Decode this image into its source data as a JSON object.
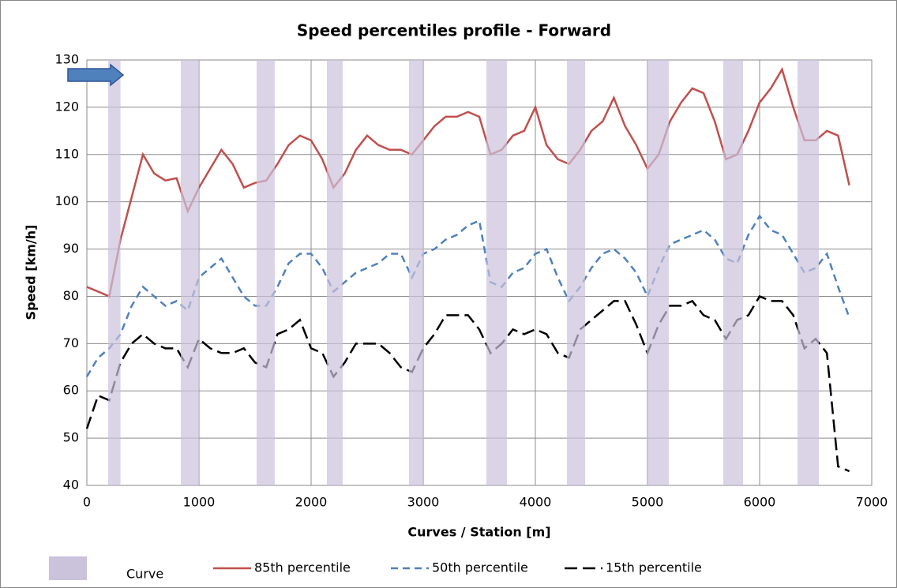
{
  "chart_data": {
    "type": "line",
    "title": "Speed percentiles profile - Forward",
    "x_label": "Curves / Station [m]",
    "y_label": "Speed [km/h]",
    "xlim": [
      0,
      7000
    ],
    "xticks": [
      0,
      1000,
      2000,
      3000,
      4000,
      5000,
      6000,
      7000
    ],
    "ylim": [
      40,
      130
    ],
    "yticks": [
      40,
      50,
      60,
      70,
      80,
      90,
      100,
      110,
      120,
      130
    ],
    "grid": true,
    "curves": {
      "name": "Curve",
      "color": "#cbc2dc",
      "ranges": [
        [
          190,
          300
        ],
        [
          838,
          1000
        ],
        [
          1514,
          1676
        ],
        [
          2141,
          2282
        ],
        [
          2873,
          3007
        ],
        [
          3563,
          3746
        ],
        [
          4282,
          4444
        ],
        [
          4993,
          5190
        ],
        [
          5676,
          5852
        ],
        [
          6338,
          6528
        ]
      ]
    },
    "x": [
      0,
      100,
      200,
      300,
      400,
      500,
      600,
      700,
      800,
      900,
      1000,
      1100,
      1200,
      1300,
      1400,
      1500,
      1600,
      1700,
      1800,
      1900,
      2000,
      2100,
      2200,
      2300,
      2400,
      2500,
      2600,
      2700,
      2800,
      2900,
      3000,
      3100,
      3200,
      3300,
      3400,
      3500,
      3600,
      3700,
      3800,
      3900,
      4000,
      4100,
      4200,
      4300,
      4400,
      4500,
      4600,
      4700,
      4800,
      4900,
      5000,
      5100,
      5200,
      5300,
      5400,
      5500,
      5600,
      5700,
      5800,
      5900,
      6000,
      6100,
      6200,
      6300,
      6400,
      6500,
      6600,
      6700,
      6800
    ],
    "series": [
      {
        "name": "85th percentile",
        "color": "#c0504d",
        "dash": "solid",
        "values": [
          82,
          81,
          80,
          92,
          101,
          110,
          106,
          104.5,
          105,
          98,
          103,
          107,
          111,
          108,
          103,
          104,
          104.5,
          108,
          112,
          114,
          113,
          109,
          103,
          106,
          111,
          114,
          112,
          111,
          111,
          110,
          113,
          116,
          118,
          118,
          119,
          118,
          110,
          111,
          114,
          115,
          120,
          112,
          109,
          108,
          111,
          115,
          117,
          122,
          116,
          112,
          107,
          110,
          117,
          121,
          124,
          123,
          117,
          109,
          110,
          115,
          121,
          124,
          128,
          120,
          113,
          113,
          115,
          114,
          103.5
        ]
      },
      {
        "name": "50th percentile",
        "color": "#4f81bd",
        "dash": "dashed",
        "values": [
          63,
          67,
          69,
          72,
          78,
          82,
          80,
          78,
          79,
          77,
          84,
          86,
          88,
          84,
          80,
          78,
          78,
          82,
          87,
          89,
          89,
          86,
          81,
          83,
          85,
          86,
          87,
          89,
          89,
          84,
          89,
          90,
          92,
          93,
          95,
          96,
          83,
          82,
          85,
          86,
          89,
          90,
          84,
          79,
          82,
          86,
          89,
          90,
          88,
          85,
          80,
          86,
          91,
          92,
          93,
          94,
          92,
          88,
          87,
          93,
          97,
          94,
          93,
          89,
          85,
          86,
          89,
          82,
          75.5
        ]
      },
      {
        "name": "15th percentile",
        "color": "#000000",
        "dash": "long-dashed",
        "values": [
          52,
          59,
          58,
          66,
          70,
          72,
          70,
          69,
          69,
          65,
          71,
          69,
          68,
          68,
          69,
          66,
          65,
          72,
          73,
          75,
          69,
          68,
          63,
          66,
          70,
          70,
          70,
          68,
          65,
          64,
          69,
          72,
          76,
          76,
          76,
          73,
          68,
          70,
          73,
          72,
          73,
          72,
          68,
          67,
          73,
          75,
          77,
          79,
          79,
          74,
          68,
          74,
          78,
          78,
          79,
          76,
          75,
          71,
          75,
          76,
          80,
          79,
          79,
          76,
          69,
          71,
          68,
          44,
          43
        ]
      }
    ]
  }
}
